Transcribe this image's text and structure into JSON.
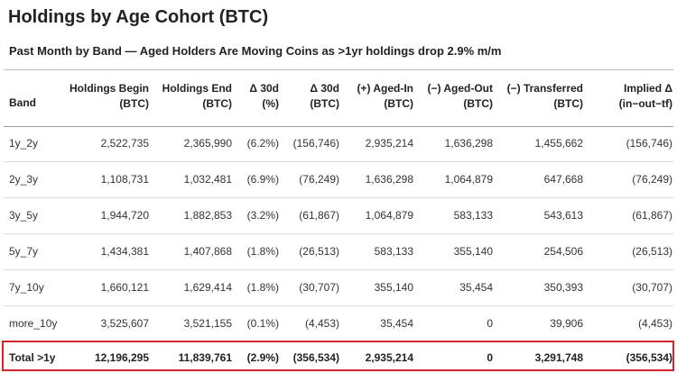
{
  "title": "Holdings by Age Cohort (BTC)",
  "subtitle": "Past Month by Band — Aged Holders Are Moving Coins as >1yr holdings drop 2.9% m/m",
  "highlight_color": "#d8232a",
  "table": {
    "headers": [
      [
        "",
        "Band"
      ],
      [
        "Holdings Begin",
        "(BTC)"
      ],
      [
        "Holdings End",
        "(BTC)"
      ],
      [
        "Δ 30d",
        "(%)"
      ],
      [
        "Δ 30d",
        "(BTC)"
      ],
      [
        "(+) Aged-In",
        "(BTC)"
      ],
      [
        "(−) Aged-Out",
        "(BTC)"
      ],
      [
        "(−) Transferred",
        "(BTC)"
      ],
      [
        "Implied Δ",
        "(in−out−tf)"
      ]
    ],
    "rows": [
      [
        "1y_2y",
        "2,522,735",
        "2,365,990",
        "(6.2%)",
        "(156,746)",
        "2,935,214",
        "1,636,298",
        "1,455,662",
        "(156,746)"
      ],
      [
        "2y_3y",
        "1,108,731",
        "1,032,481",
        "(6.9%)",
        "(76,249)",
        "1,636,298",
        "1,064,879",
        "647,668",
        "(76,249)"
      ],
      [
        "3y_5y",
        "1,944,720",
        "1,882,853",
        "(3.2%)",
        "(61,867)",
        "1,064,879",
        "583,133",
        "543,613",
        "(61,867)"
      ],
      [
        "5y_7y",
        "1,434,381",
        "1,407,868",
        "(1.8%)",
        "(26,513)",
        "583,133",
        "355,140",
        "254,506",
        "(26,513)"
      ],
      [
        "7y_10y",
        "1,660,121",
        "1,629,414",
        "(1.8%)",
        "(30,707)",
        "355,140",
        "35,454",
        "350,393",
        "(30,707)"
      ],
      [
        "more_10y",
        "3,525,607",
        "3,521,155",
        "(0.1%)",
        "(4,453)",
        "35,454",
        "0",
        "39,906",
        "(4,453)"
      ]
    ],
    "total": [
      "Total >1y",
      "12,196,295",
      "11,839,761",
      "(2.9%)",
      "(356,534)",
      "2,935,214",
      "0",
      "3,291,748",
      "(356,534)"
    ]
  }
}
